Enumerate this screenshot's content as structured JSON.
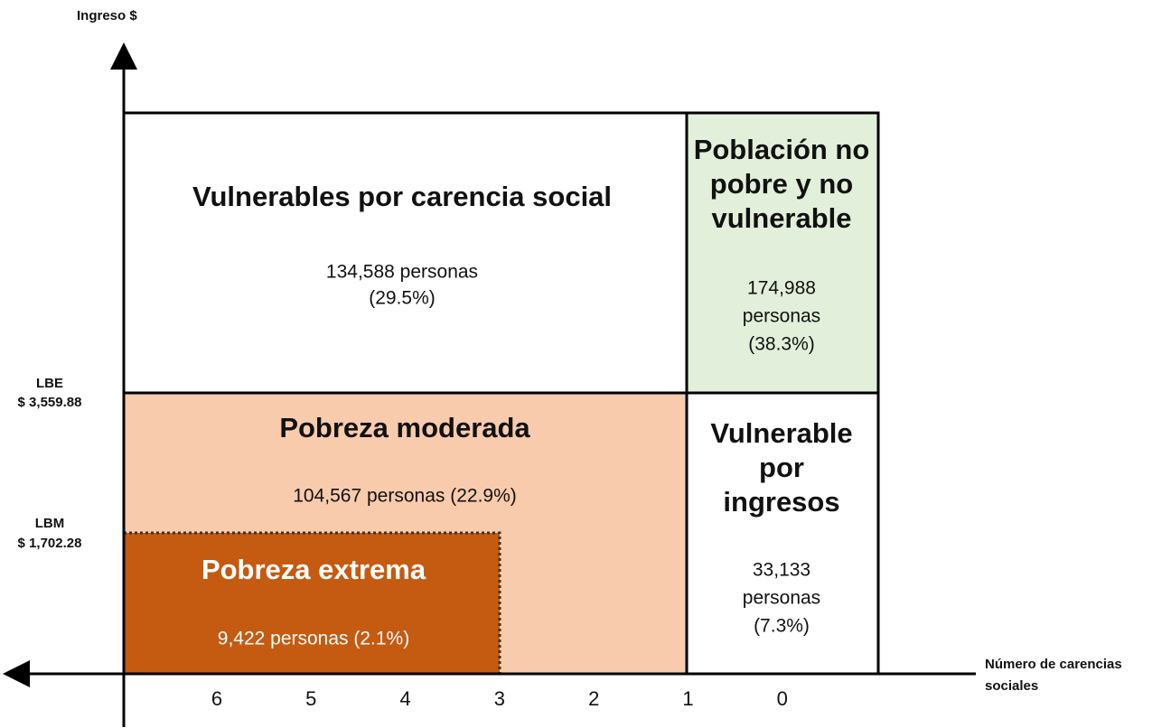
{
  "y_axis": {
    "label": "Ingreso $",
    "lines": [
      {
        "name": "LBE",
        "amount": "$ 3,559.88"
      },
      {
        "name": "LBM",
        "amount": "$ 1,702.28"
      }
    ]
  },
  "x_axis": {
    "label": [
      "Número de carencias",
      "sociales"
    ],
    "ticks": [
      6,
      5,
      4,
      3,
      2,
      1,
      0
    ]
  },
  "regions": [
    {
      "title": [
        "Vulnerables por carencia social"
      ],
      "detail": [
        "134,588 personas",
        "(29.5%)"
      ]
    },
    {
      "title": [
        "Población no",
        "pobre y no",
        "vulnerable"
      ],
      "detail": [
        "174,988",
        "personas",
        "(38.3%)"
      ]
    },
    {
      "title": [
        "Pobreza moderada"
      ],
      "detail": [
        "104,567 personas (22.9%)"
      ]
    },
    {
      "title": [
        "Vulnerable",
        "por",
        "ingresos"
      ],
      "detail": [
        "33,133",
        "personas",
        "(7.3%)"
      ]
    },
    {
      "title": [
        "Pobreza extrema"
      ],
      "detail": [
        "9,422 personas (2.1%)"
      ]
    }
  ]
}
